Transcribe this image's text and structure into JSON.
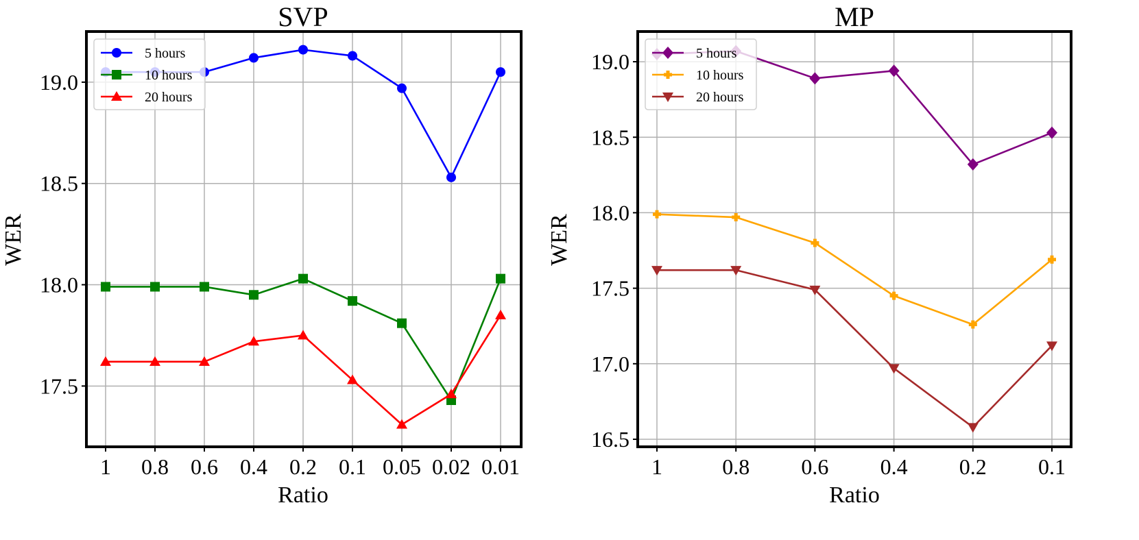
{
  "chart_data": [
    {
      "type": "line",
      "title": "SVP",
      "xlabel": "Ratio",
      "ylabel": "WER",
      "categories": [
        "1",
        "0.8",
        "0.6",
        "0.4",
        "0.2",
        "0.1",
        "0.05",
        "0.02",
        "0.01"
      ],
      "ylim": [
        17.2,
        19.25
      ],
      "yticks": [
        17.5,
        18.0,
        18.5,
        19.0
      ],
      "ytick_labels": [
        "17.5",
        "18.0",
        "18.5",
        "19.0"
      ],
      "grid": true,
      "legend_position": "top-left",
      "series": [
        {
          "name": "5 hours",
          "color": "#0000ff",
          "marker": "circle",
          "values": [
            19.05,
            19.05,
            19.05,
            19.12,
            19.16,
            19.13,
            18.97,
            18.53,
            19.05
          ]
        },
        {
          "name": "10 hours",
          "color": "#008000",
          "marker": "square",
          "values": [
            17.99,
            17.99,
            17.99,
            17.95,
            18.03,
            17.92,
            17.81,
            17.43,
            18.03
          ]
        },
        {
          "name": "20 hours",
          "color": "#ff0000",
          "marker": "triangle-up",
          "values": [
            17.62,
            17.62,
            17.62,
            17.72,
            17.75,
            17.53,
            17.31,
            17.46,
            17.85
          ]
        }
      ]
    },
    {
      "type": "line",
      "title": "MP",
      "xlabel": "Ratio",
      "ylabel": "WER",
      "categories": [
        "1",
        "0.8",
        "0.6",
        "0.4",
        "0.2",
        "0.1"
      ],
      "ylim": [
        16.45,
        19.2
      ],
      "yticks": [
        16.5,
        17.0,
        17.5,
        18.0,
        18.5,
        19.0
      ],
      "ytick_labels": [
        "16.5",
        "17.0",
        "17.5",
        "18.0",
        "18.5",
        "19.0"
      ],
      "grid": true,
      "legend_position": "top-left",
      "series": [
        {
          "name": "5 hours",
          "color": "#800080",
          "marker": "diamond",
          "values": [
            19.05,
            19.07,
            18.89,
            18.94,
            18.32,
            18.53
          ]
        },
        {
          "name": "10 hours",
          "color": "#ffa500",
          "marker": "plus",
          "values": [
            17.99,
            17.97,
            17.8,
            17.45,
            17.26,
            17.69
          ]
        },
        {
          "name": "20 hours",
          "color": "#a52a2a",
          "marker": "triangle-down",
          "values": [
            17.62,
            17.62,
            17.49,
            16.97,
            16.58,
            17.12
          ]
        }
      ]
    }
  ]
}
